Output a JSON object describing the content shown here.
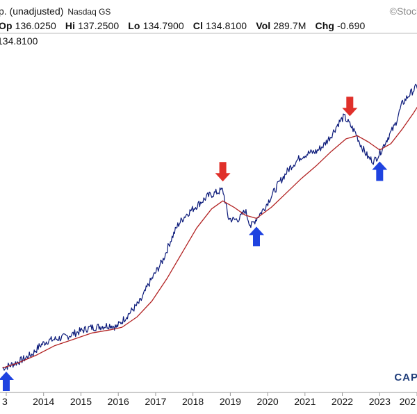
{
  "header": {
    "title": "p. (unadjusted)",
    "exchange": "Nasdaq GS",
    "brand": "©Stock",
    "ohlc": {
      "open_label": "Op",
      "open": "136.0250",
      "high_label": "Hi",
      "high": "137.2500",
      "low_label": "Lo",
      "low": "134.7900",
      "close_label": "Cl",
      "close": "134.8100",
      "vol_label": "Vol",
      "vol": "289.7M",
      "chg_label": "Chg",
      "chg": "-0.690"
    },
    "last_value": "134.8100"
  },
  "watermark": "CAP",
  "colors": {
    "price": "#0b1a7a",
    "moving_average": "#b22222",
    "arrow_down": "#e0302a",
    "arrow_up": "#1f43e0",
    "axis": "#999999"
  },
  "chart_data": {
    "type": "line",
    "x_tick_labels": [
      "3",
      "2014",
      "2015",
      "2016",
      "2017",
      "2018",
      "2019",
      "2020",
      "2021",
      "2022",
      "2023",
      "202"
    ],
    "x_range": [
      2013.0,
      2024.0
    ],
    "ylim": [
      0,
      100
    ],
    "grid": false,
    "series": [
      {
        "role": "price",
        "points": [
          [
            2012.9,
            4.0
          ],
          [
            2013.1,
            4.8
          ],
          [
            2013.3,
            5.8
          ],
          [
            2013.5,
            7.0
          ],
          [
            2013.7,
            8.4
          ],
          [
            2013.9,
            11.0
          ],
          [
            2014.1,
            12.5
          ],
          [
            2014.3,
            13.0
          ],
          [
            2014.6,
            13.8
          ],
          [
            2014.9,
            15.2
          ],
          [
            2015.2,
            16.5
          ],
          [
            2015.5,
            17.0
          ],
          [
            2015.8,
            17.5
          ],
          [
            2015.95,
            16.8
          ],
          [
            2016.2,
            20.0
          ],
          [
            2016.4,
            22.5
          ],
          [
            2016.6,
            25.0
          ],
          [
            2016.8,
            30.0
          ],
          [
            2017.0,
            34.0
          ],
          [
            2017.2,
            38.0
          ],
          [
            2017.4,
            44.0
          ],
          [
            2017.6,
            49.0
          ],
          [
            2017.8,
            52.0
          ],
          [
            2018.0,
            54.0
          ],
          [
            2018.2,
            56.0
          ],
          [
            2018.4,
            58.0
          ],
          [
            2018.6,
            59.0
          ],
          [
            2018.8,
            60.0
          ],
          [
            2018.95,
            51.0
          ],
          [
            2019.1,
            50.5
          ],
          [
            2019.25,
            51.0
          ],
          [
            2019.4,
            53.5
          ],
          [
            2019.55,
            48.5
          ],
          [
            2019.7,
            51.0
          ],
          [
            2019.9,
            54.0
          ],
          [
            2020.1,
            58.0
          ],
          [
            2020.3,
            62.0
          ],
          [
            2020.6,
            67.0
          ],
          [
            2020.9,
            70.5
          ],
          [
            2021.1,
            71.5
          ],
          [
            2021.3,
            72.0
          ],
          [
            2021.5,
            74.0
          ],
          [
            2021.7,
            77.0
          ],
          [
            2021.9,
            81.0
          ],
          [
            2022.05,
            83.0
          ],
          [
            2022.2,
            80.5
          ],
          [
            2022.35,
            78.0
          ],
          [
            2022.5,
            74.0
          ],
          [
            2022.7,
            70.0
          ],
          [
            2022.85,
            69.0
          ],
          [
            2023.0,
            71.5
          ],
          [
            2023.2,
            76.0
          ],
          [
            2023.4,
            80.0
          ],
          [
            2023.6,
            87.0
          ],
          [
            2023.8,
            90.0
          ],
          [
            2024.0,
            92.5
          ],
          [
            2024.2,
            97.0
          ]
        ]
      },
      {
        "role": "moving_average",
        "points": [
          [
            2012.9,
            4.0
          ],
          [
            2013.3,
            5.5
          ],
          [
            2013.8,
            8.0
          ],
          [
            2014.3,
            11.0
          ],
          [
            2014.8,
            13.0
          ],
          [
            2015.3,
            15.0
          ],
          [
            2015.8,
            16.0
          ],
          [
            2016.1,
            16.8
          ],
          [
            2016.5,
            20.0
          ],
          [
            2016.9,
            25.0
          ],
          [
            2017.3,
            32.0
          ],
          [
            2017.7,
            40.0
          ],
          [
            2018.1,
            48.0
          ],
          [
            2018.5,
            54.0
          ],
          [
            2018.8,
            56.5
          ],
          [
            2019.1,
            54.5
          ],
          [
            2019.4,
            52.0
          ],
          [
            2019.7,
            51.0
          ],
          [
            2020.1,
            54.5
          ],
          [
            2020.5,
            59.0
          ],
          [
            2020.9,
            63.5
          ],
          [
            2021.3,
            67.5
          ],
          [
            2021.7,
            72.0
          ],
          [
            2022.1,
            76.0
          ],
          [
            2022.4,
            77.0
          ],
          [
            2022.7,
            75.0
          ],
          [
            2023.0,
            72.5
          ],
          [
            2023.3,
            74.5
          ],
          [
            2023.6,
            79.0
          ],
          [
            2023.9,
            84.0
          ],
          [
            2024.2,
            89.5
          ]
        ]
      }
    ],
    "markers": [
      {
        "type": "down",
        "x": 2018.8
      },
      {
        "type": "up",
        "x": 2019.7
      },
      {
        "type": "down",
        "x": 2022.2
      },
      {
        "type": "up",
        "x": 2023.0
      },
      {
        "type": "up",
        "x": 2013.0
      }
    ]
  }
}
